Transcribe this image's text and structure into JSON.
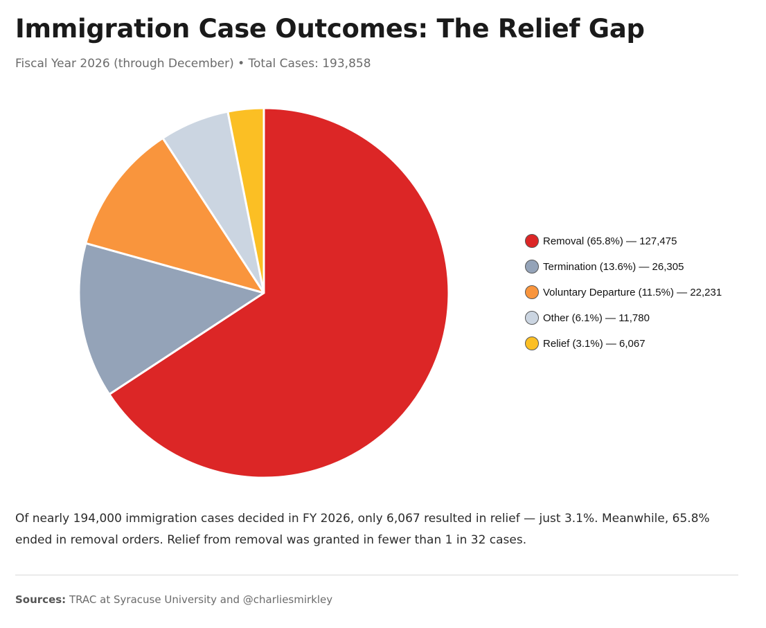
{
  "header": {
    "title": "Immigration Case Outcomes: The Relief Gap",
    "subtitle": "Fiscal Year 2026 (through December) • Total Cases: 193,858"
  },
  "chart_data": {
    "type": "pie",
    "total": 193858,
    "slices": [
      {
        "label": "Removal",
        "percent": 65.8,
        "value": 127475,
        "color": "#dc2626",
        "legend": "Removal (65.8%) — 127,475"
      },
      {
        "label": "Termination",
        "percent": 13.6,
        "value": 26305,
        "color": "#94a3b8",
        "legend": "Termination (13.6%) — 26,305"
      },
      {
        "label": "Voluntary Departure",
        "percent": 11.5,
        "value": 22231,
        "color": "#f9953d",
        "legend": "Voluntary Departure (11.5%) — 22,231"
      },
      {
        "label": "Other",
        "percent": 6.1,
        "value": 11780,
        "color": "#cbd5e1",
        "legend": "Other (6.1%) — 11,780"
      },
      {
        "label": "Relief",
        "percent": 3.1,
        "value": 6067,
        "color": "#fbbf24",
        "legend": "Relief (3.1%) — 6,067"
      }
    ],
    "legend_position": "right",
    "start_angle": "12 o'clock",
    "direction": "clockwise"
  },
  "summary": "Of nearly 194,000 immigration cases decided in FY 2026, only 6,067 resulted in relief — just 3.1%. Meanwhile, 65.8% ended in removal orders. Relief from removal was granted in fewer than 1 in 32 cases.",
  "sources": {
    "label": "Sources:",
    "text": " TRAC at Syracuse University and @charliesmirkley"
  }
}
